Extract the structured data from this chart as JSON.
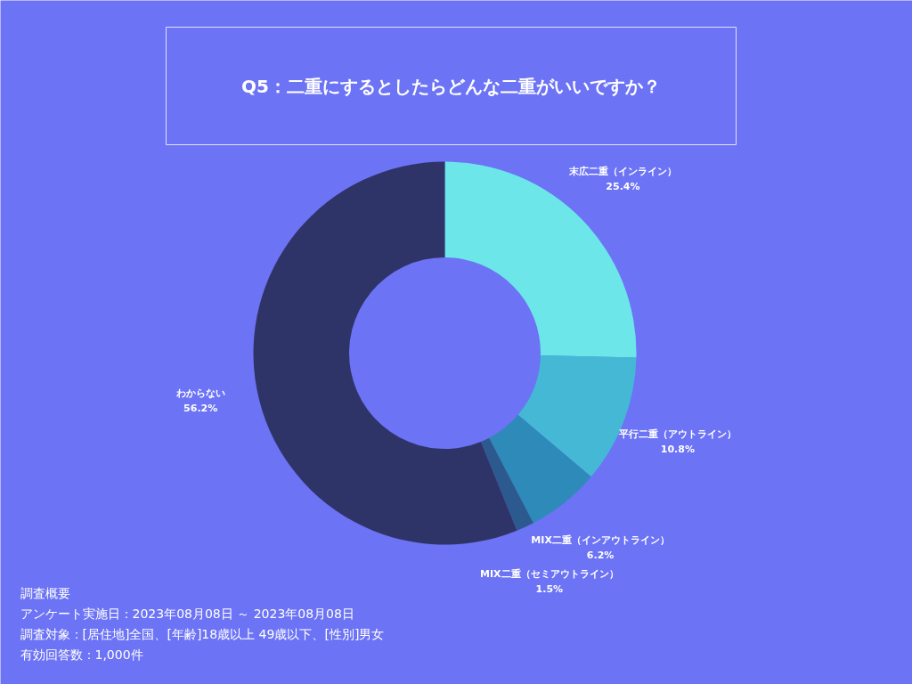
{
  "chart_data": {
    "type": "donut",
    "title": "Q5：二重にするとしたらどんな二重がいいですか？",
    "categories": [
      "末広二重（インライン）",
      "平行二重（アウトライン）",
      "MIX二重（インアウトライン）",
      "MIX二重（セミアウトライン）",
      "わからない"
    ],
    "values": [
      25.4,
      10.8,
      6.2,
      1.5,
      56.2
    ],
    "value_labels": [
      "25.4%",
      "10.8%",
      "6.2%",
      "1.5%",
      "56.2%"
    ],
    "colors": [
      "#6ce6e8",
      "#45b8d6",
      "#2e8ab8",
      "#2c5a8e",
      "#2f3468"
    ],
    "legend": false,
    "annotations": [
      "調査概要",
      "アンケート実施日：2023年08月08日 ～ 2023年08月08日",
      "調査対象：[居住地]全国、[年齢]18歳以上 49歳以下、[性別]男女",
      "有効回答数：1,000件"
    ]
  }
}
